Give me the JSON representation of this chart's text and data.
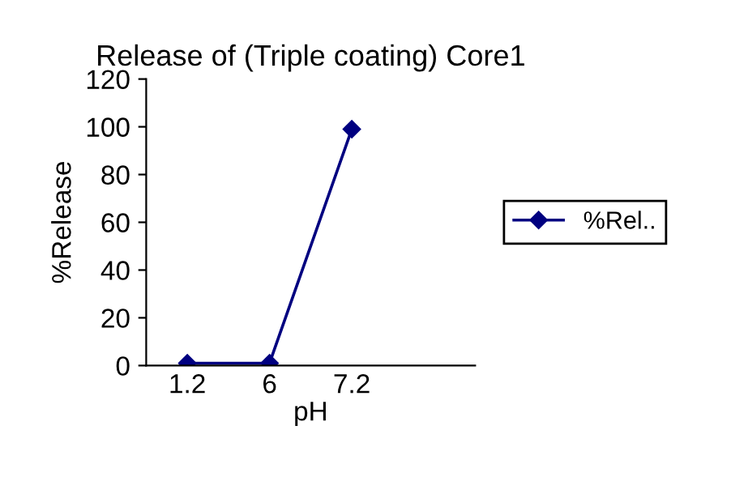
{
  "chart_data": {
    "type": "line",
    "title": "Release of (Triple coating) Core1",
    "xlabel": "pH",
    "ylabel": "%Release",
    "categories": [
      "1.2",
      "6",
      "7.2",
      null
    ],
    "series": [
      {
        "name": "%Rel..",
        "color": "#000080",
        "values": [
          1,
          1,
          99,
          null
        ]
      }
    ],
    "ylim": [
      0,
      120
    ],
    "yticks": [
      0,
      20,
      40,
      60,
      80,
      100,
      120
    ],
    "grid": false,
    "legend": "right",
    "marker": "diamond",
    "line_style": "solid"
  }
}
